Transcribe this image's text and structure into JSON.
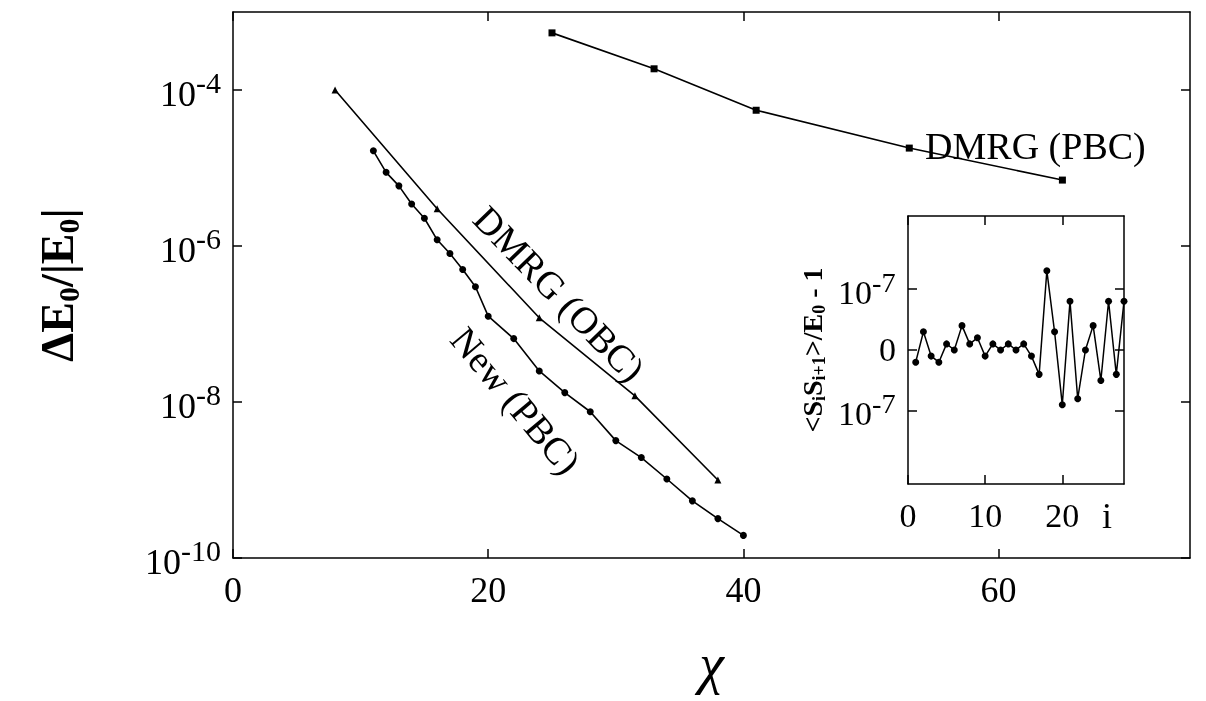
{
  "chart_data": [
    {
      "type": "line",
      "xlabel": "χ",
      "ylabel": "ΔE$_{0}$/|E$_{0}$|",
      "log": "y",
      "xlim": [
        0,
        75
      ],
      "xticks": [
        0,
        20,
        40,
        60
      ],
      "ylim": [
        1e-10,
        0.001
      ],
      "yticks": [
        {
          "value": 0.0001,
          "label": "10$^{-4}$"
        },
        {
          "value": 1e-06,
          "label": "10$^{-6}$"
        },
        {
          "value": 1e-08,
          "label": "10$^{-8}$"
        },
        {
          "value": 1e-10,
          "label": "10$^{-10}$"
        }
      ],
      "grid": false,
      "legend": false,
      "line_style": "solid",
      "series": [
        {
          "name": "DMRG (PBC)",
          "color": "#000000",
          "marker": "square",
          "x": [
            25,
            33,
            41,
            53,
            65
          ],
          "values": [
            0.00054,
            0.000187,
            5.5e-05,
            1.8e-05,
            7e-06
          ]
        },
        {
          "name": "DMRG (OBC)",
          "color": "#000000",
          "marker": "triangle",
          "x": [
            8,
            16,
            24,
            31.5,
            38
          ],
          "values": [
            0.0001,
            3e-06,
            1.2e-07,
            1.2e-08,
            1e-09
          ]
        },
        {
          "name": "New (PBC)",
          "color": "#000000",
          "marker": "circle",
          "x": [
            11,
            12,
            13,
            14,
            15,
            16,
            17,
            18,
            19,
            20,
            22,
            24,
            26,
            28,
            30,
            32,
            34,
            36,
            38,
            40
          ],
          "values": [
            1.66e-05,
            8.8e-06,
            5.9e-06,
            3.45e-06,
            2.27e-06,
            1.2e-06,
            8e-07,
            5e-07,
            3e-07,
            1.26e-07,
            6.5e-08,
            2.5e-08,
            1.32e-08,
            7.5e-09,
            3.2e-09,
            1.94e-09,
            1.03e-09,
            5.4e-10,
            3.2e-10,
            1.95e-10
          ]
        }
      ]
    },
    {
      "type": "line",
      "xlabel": "i",
      "ylabel": "<S$_{i}$S$_{i+1}$>/E$_{0}$ - 1",
      "xlim": [
        0,
        28
      ],
      "xticks": [
        0,
        10,
        20
      ],
      "ylim": [
        -2.2e-07,
        2.2e-07
      ],
      "yticks": [
        {
          "value": -1e-07,
          "label": "10$^{-7}$"
        },
        0,
        {
          "value": 1e-07,
          "label": "10$^{-7}$"
        }
      ],
      "grid": false,
      "legend": false,
      "line_style": "solid",
      "marker": "circle",
      "series": [
        {
          "color": "#000000",
          "x": [
            1,
            2,
            3,
            4,
            5,
            6,
            7,
            8,
            9,
            10,
            11,
            12,
            13,
            14,
            15,
            16,
            17,
            18,
            19,
            20,
            21,
            22,
            23,
            24,
            25,
            26,
            27,
            28
          ],
          "values": [
            -2e-08,
            3e-08,
            -1e-08,
            -2e-08,
            1e-08,
            0,
            4e-08,
            1e-08,
            2e-08,
            -1e-08,
            1e-08,
            0,
            1e-08,
            0,
            1e-08,
            -1e-08,
            -4e-08,
            1.3e-07,
            3e-08,
            -9e-08,
            8e-08,
            -8e-08,
            0,
            4e-08,
            -5e-08,
            8e-08,
            -4e-08,
            8e-08
          ]
        }
      ]
    }
  ]
}
